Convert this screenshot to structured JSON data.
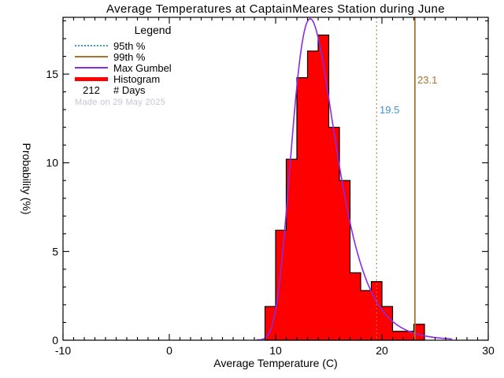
{
  "title": "Average Temperatures at CaptainMeares Station during June",
  "axes": {
    "xlabel": "Average Temperature (C)",
    "ylabel": "Probability (%)",
    "x_tick_labels": [
      "-10",
      "0",
      "10",
      "20",
      "30"
    ],
    "y_tick_labels": [
      "0",
      "5",
      "10",
      "15"
    ]
  },
  "legend": {
    "title": "Legend",
    "items": [
      {
        "label": "95th %",
        "color": "#3f93d8",
        "style": "dotted",
        "weight": 2
      },
      {
        "label": "99th %",
        "color": "#a8722e",
        "style": "solid",
        "weight": 2
      },
      {
        "label": "Max Gumbel",
        "color": "#8a2be2",
        "style": "solid",
        "weight": 2
      },
      {
        "label": "Histogram",
        "color": "#ff0000",
        "style": "solid",
        "weight": 5
      }
    ],
    "days_value": "212",
    "days_label": "# Days",
    "made_on": "Made on 29 May 2025",
    "made_on_color": "#c8c4d0"
  },
  "annotations": {
    "p95_label": "19.5",
    "p99_label": "23.1"
  },
  "chart_data": {
    "type": "bar",
    "subtype": "histogram-with-gumbel-fit",
    "title": "Average Temperatures at CaptainMeares Station during June",
    "xlabel": "Average Temperature (C)",
    "ylabel": "Probability (%)",
    "xlim": [
      -10,
      30
    ],
    "ylim": [
      0,
      18.2
    ],
    "x_major_ticks": [
      -10,
      0,
      10,
      20,
      30
    ],
    "y_major_ticks": [
      0,
      5,
      10,
      15
    ],
    "minor_tick_step": 1,
    "grid": false,
    "n_days": 212,
    "histogram": {
      "bin_start": 9,
      "bin_width": 1,
      "bin_left_edges": [
        9,
        10,
        11,
        12,
        13,
        14,
        15,
        16,
        17,
        18,
        19,
        20,
        21,
        22,
        23
      ],
      "probabilities_pct": [
        1.9,
        6.2,
        10.2,
        14.8,
        16.3,
        17.2,
        12.0,
        9.0,
        3.8,
        2.8,
        3.3,
        1.9,
        0.5,
        0.5,
        0.9
      ],
      "fill_color": "#ff0000",
      "outline_color": "#000000"
    },
    "gumbel_fit": {
      "name": "Max Gumbel",
      "mu": 13.25,
      "beta": 2.03,
      "x_range": [
        8.2,
        26.6
      ],
      "color": "#8a2be2"
    },
    "percentiles": {
      "p95": {
        "value": 19.5,
        "line_color": "#a8803f",
        "label_color": "#3f93d8",
        "line_style": "dotted"
      },
      "p99": {
        "value": 23.1,
        "line_color": "#a8722e",
        "label_color": "#a8722e",
        "line_style": "solid"
      }
    }
  }
}
